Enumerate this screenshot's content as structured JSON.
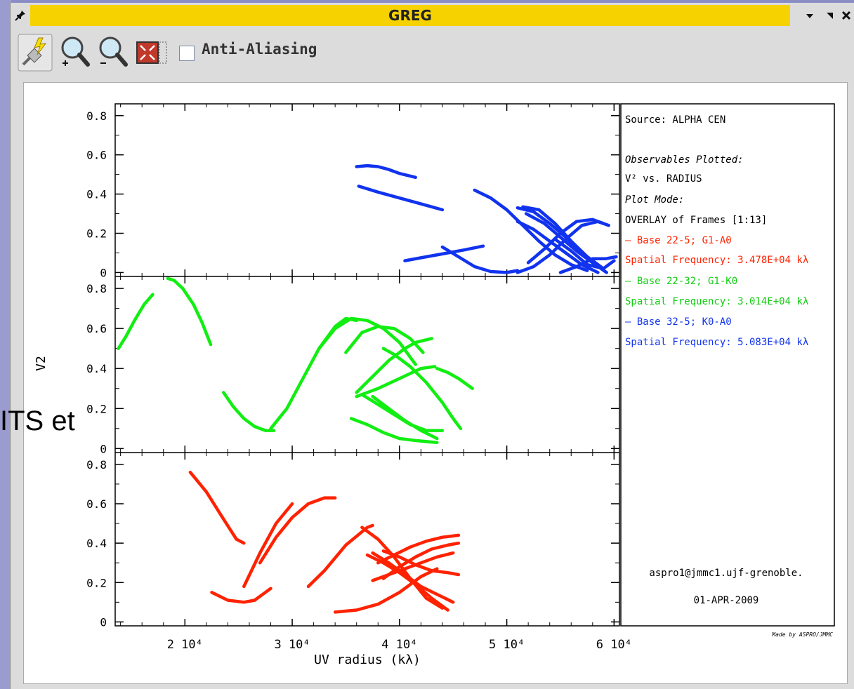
{
  "background": {
    "partial_text": "ITS et"
  },
  "window": {
    "title": "GREG"
  },
  "toolbar": {
    "tools": [
      {
        "icon": "lightning-plug-icon"
      },
      {
        "icon": "zoom-in-icon"
      },
      {
        "icon": "zoom-out-icon"
      },
      {
        "icon": "fit-to-window-icon"
      }
    ],
    "antialias_label": "Anti-Aliasing",
    "antialias_checked": false
  },
  "colors": {
    "red": "#ff2200",
    "green": "#11ee11",
    "blue": "#1133ee"
  },
  "chart_data": {
    "type": "line",
    "xlabel": "UV radius (kλ)",
    "ylabel": "V2",
    "xlim": [
      13500,
      60500
    ],
    "x_ticks": [
      {
        "value": 20000,
        "label": "2 10⁴"
      },
      {
        "value": 30000,
        "label": "3 10⁴"
      },
      {
        "value": 40000,
        "label": "4 10⁴"
      },
      {
        "value": 50000,
        "label": "5 10⁴"
      },
      {
        "value": 60000,
        "label": "6 10⁴"
      }
    ],
    "y_ticks": [
      "0",
      "0.2",
      "0.4",
      "0.6",
      "0.8"
    ],
    "panels": [
      {
        "name": "blue-panel",
        "color": "blue",
        "ylim": [
          -0.02,
          0.86
        ],
        "series": [
          [
            [
              36000,
              0.54
            ],
            [
              37000,
              0.545
            ],
            [
              38000,
              0.54
            ],
            [
              39000,
              0.525
            ],
            [
              40000,
              0.505
            ],
            [
              41500,
              0.485
            ]
          ],
          [
            [
              36200,
              0.44
            ],
            [
              38000,
              0.41
            ],
            [
              40000,
              0.38
            ],
            [
              42000,
              0.35
            ],
            [
              44000,
              0.32
            ]
          ],
          [
            [
              40500,
              0.06
            ],
            [
              42000,
              0.075
            ],
            [
              44000,
              0.095
            ],
            [
              46000,
              0.115
            ],
            [
              47800,
              0.135
            ]
          ],
          [
            [
              44000,
              0.13
            ],
            [
              45500,
              0.08
            ],
            [
              47000,
              0.03
            ],
            [
              48500,
              0.005
            ],
            [
              50000,
              0.0
            ],
            [
              51000,
              0.01
            ]
          ],
          [
            [
              47000,
              0.42
            ],
            [
              48500,
              0.38
            ],
            [
              50000,
              0.32
            ],
            [
              51500,
              0.24
            ],
            [
              53000,
              0.16
            ],
            [
              54500,
              0.09
            ],
            [
              56000,
              0.04
            ],
            [
              57500,
              0.01
            ]
          ],
          [
            [
              51000,
              0.33
            ],
            [
              52500,
              0.31
            ],
            [
              54000,
              0.25
            ],
            [
              55500,
              0.18
            ],
            [
              57000,
              0.1
            ],
            [
              58500,
              0.04
            ]
          ],
          [
            [
              51500,
              0.335
            ],
            [
              53000,
              0.32
            ],
            [
              54500,
              0.25
            ],
            [
              56000,
              0.16
            ],
            [
              57500,
              0.08
            ],
            [
              59000,
              0.02
            ]
          ],
          [
            [
              51800,
              0.3
            ],
            [
              53500,
              0.25
            ],
            [
              55000,
              0.18
            ],
            [
              56500,
              0.11
            ],
            [
              58000,
              0.05
            ],
            [
              59300,
              0.0
            ]
          ],
          [
            [
              51000,
              0.26
            ],
            [
              52500,
              0.22
            ],
            [
              54000,
              0.16
            ],
            [
              55500,
              0.1
            ],
            [
              57000,
              0.04
            ],
            [
              58500,
              0.0
            ]
          ],
          [
            [
              51000,
              0.0
            ],
            [
              52500,
              0.03
            ],
            [
              54000,
              0.09
            ],
            [
              55500,
              0.17
            ],
            [
              57000,
              0.24
            ],
            [
              58500,
              0.26
            ],
            [
              59500,
              0.24
            ]
          ],
          [
            [
              52000,
              0.05
            ],
            [
              53500,
              0.12
            ],
            [
              55000,
              0.2
            ],
            [
              56500,
              0.26
            ],
            [
              58000,
              0.27
            ],
            [
              59000,
              0.25
            ]
          ],
          [
            [
              55000,
              0.0
            ],
            [
              56500,
              0.03
            ],
            [
              58000,
              0.07
            ],
            [
              59200,
              0.07
            ],
            [
              60200,
              0.08
            ]
          ],
          [
            [
              54500,
              0.17
            ],
            [
              56000,
              0.11
            ],
            [
              57500,
              0.04
            ],
            [
              59000,
              0.02
            ],
            [
              60000,
              0.06
            ]
          ]
        ]
      },
      {
        "name": "green-panel",
        "color": "green",
        "ylim": [
          -0.02,
          0.86
        ],
        "series": [
          [
            [
              13800,
              0.5
            ],
            [
              14500,
              0.56
            ],
            [
              15300,
              0.64
            ],
            [
              16200,
              0.72
            ],
            [
              17000,
              0.77
            ]
          ],
          [
            [
              18400,
              0.85
            ],
            [
              19000,
              0.84
            ],
            [
              19800,
              0.8
            ],
            [
              20800,
              0.72
            ],
            [
              21600,
              0.63
            ],
            [
              22400,
              0.52
            ]
          ],
          [
            [
              23600,
              0.28
            ],
            [
              24500,
              0.21
            ],
            [
              25500,
              0.15
            ],
            [
              26500,
              0.11
            ],
            [
              27500,
              0.09
            ],
            [
              28300,
              0.09
            ]
          ],
          [
            [
              28000,
              0.1
            ],
            [
              29500,
              0.2
            ],
            [
              31000,
              0.35
            ],
            [
              32500,
              0.5
            ],
            [
              34000,
              0.61
            ],
            [
              35000,
              0.65
            ],
            [
              36000,
              0.64
            ]
          ],
          [
            [
              32500,
              0.5
            ],
            [
              34000,
              0.6
            ],
            [
              35500,
              0.65
            ],
            [
              37000,
              0.64
            ],
            [
              38500,
              0.6
            ],
            [
              40000,
              0.53
            ],
            [
              41500,
              0.42
            ]
          ],
          [
            [
              35000,
              0.48
            ],
            [
              36500,
              0.58
            ],
            [
              38000,
              0.61
            ],
            [
              39500,
              0.6
            ],
            [
              41000,
              0.55
            ],
            [
              42200,
              0.48
            ]
          ],
          [
            [
              36000,
              0.26
            ],
            [
              38000,
              0.3
            ],
            [
              40000,
              0.35
            ],
            [
              42000,
              0.4
            ],
            [
              43300,
              0.41
            ]
          ],
          [
            [
              36000,
              0.28
            ],
            [
              37500,
              0.36
            ],
            [
              39000,
              0.44
            ],
            [
              40500,
              0.5
            ],
            [
              41500,
              0.53
            ],
            [
              43000,
              0.55
            ]
          ],
          [
            [
              36500,
              0.27
            ],
            [
              38000,
              0.22
            ],
            [
              39500,
              0.17
            ],
            [
              41000,
              0.12
            ],
            [
              42500,
              0.09
            ],
            [
              44000,
              0.09
            ]
          ],
          [
            [
              35500,
              0.15
            ],
            [
              37000,
              0.12
            ],
            [
              38500,
              0.08
            ],
            [
              40000,
              0.05
            ],
            [
              41500,
              0.04
            ],
            [
              43500,
              0.03
            ]
          ],
          [
            [
              37500,
              0.26
            ],
            [
              39000,
              0.2
            ],
            [
              40500,
              0.14
            ],
            [
              42000,
              0.09
            ],
            [
              43500,
              0.05
            ]
          ],
          [
            [
              38500,
              0.5
            ],
            [
              39500,
              0.47
            ],
            [
              41000,
              0.41
            ],
            [
              42500,
              0.33
            ],
            [
              44000,
              0.23
            ],
            [
              45000,
              0.15
            ],
            [
              45700,
              0.1
            ]
          ],
          [
            [
              43500,
              0.4
            ],
            [
              44500,
              0.38
            ],
            [
              45500,
              0.35
            ],
            [
              46800,
              0.3
            ]
          ]
        ]
      },
      {
        "name": "red-panel",
        "color": "red",
        "ylim": [
          -0.02,
          0.86
        ],
        "series": [
          [
            [
              20500,
              0.76
            ],
            [
              22000,
              0.66
            ],
            [
              23500,
              0.53
            ],
            [
              24800,
              0.42
            ],
            [
              25500,
              0.4
            ]
          ],
          [
            [
              22500,
              0.15
            ],
            [
              24000,
              0.11
            ],
            [
              25500,
              0.1
            ],
            [
              26500,
              0.11
            ],
            [
              28000,
              0.17
            ]
          ],
          [
            [
              25500,
              0.18
            ],
            [
              27000,
              0.35
            ],
            [
              28500,
              0.5
            ],
            [
              30000,
              0.6
            ]
          ],
          [
            [
              27000,
              0.3
            ],
            [
              28500,
              0.43
            ],
            [
              30000,
              0.53
            ],
            [
              31500,
              0.6
            ],
            [
              33000,
              0.63
            ],
            [
              34000,
              0.63
            ]
          ],
          [
            [
              31500,
              0.18
            ],
            [
              33000,
              0.26
            ],
            [
              35000,
              0.39
            ],
            [
              37000,
              0.48
            ],
            [
              37500,
              0.49
            ]
          ],
          [
            [
              36500,
              0.48
            ],
            [
              38000,
              0.42
            ],
            [
              39500,
              0.33
            ],
            [
              41000,
              0.22
            ],
            [
              42500,
              0.12
            ],
            [
              44000,
              0.07
            ]
          ],
          [
            [
              37500,
              0.35
            ],
            [
              39000,
              0.3
            ],
            [
              40500,
              0.24
            ],
            [
              42000,
              0.18
            ],
            [
              43500,
              0.14
            ],
            [
              45000,
              0.1
            ]
          ],
          [
            [
              38000,
              0.3
            ],
            [
              39500,
              0.34
            ],
            [
              41000,
              0.38
            ],
            [
              42500,
              0.41
            ],
            [
              44000,
              0.43
            ],
            [
              45500,
              0.44
            ]
          ],
          [
            [
              38500,
              0.22
            ],
            [
              40000,
              0.28
            ],
            [
              41500,
              0.33
            ],
            [
              43000,
              0.37
            ],
            [
              44500,
              0.39
            ],
            [
              45500,
              0.4
            ]
          ],
          [
            [
              38500,
              0.36
            ],
            [
              40000,
              0.33
            ],
            [
              41500,
              0.29
            ],
            [
              43000,
              0.26
            ],
            [
              44500,
              0.25
            ],
            [
              45500,
              0.24
            ]
          ],
          [
            [
              37500,
              0.21
            ],
            [
              39000,
              0.24
            ],
            [
              40500,
              0.27
            ],
            [
              42000,
              0.3
            ],
            [
              43500,
              0.33
            ],
            [
              45000,
              0.35
            ]
          ],
          [
            [
              37000,
              0.34
            ],
            [
              38500,
              0.3
            ],
            [
              40000,
              0.25
            ],
            [
              41500,
              0.19
            ],
            [
              43000,
              0.12
            ],
            [
              44500,
              0.06
            ]
          ],
          [
            [
              34000,
              0.05
            ],
            [
              36000,
              0.06
            ],
            [
              38000,
              0.09
            ],
            [
              40000,
              0.15
            ],
            [
              42000,
              0.23
            ],
            [
              43500,
              0.27
            ]
          ]
        ]
      }
    ],
    "legend": {
      "placement": "right",
      "lines": [
        {
          "text": "Source: ALPHA CEN",
          "color": "#000"
        },
        {
          "text": "Observables Plotted:",
          "color": "#000",
          "italic": true
        },
        {
          "text": "V² vs. RADIUS",
          "color": "#000"
        },
        {
          "text": "Plot Mode:",
          "color": "#000",
          "italic": true
        },
        {
          "text": "OVERLAY of Frames [1:13]",
          "color": "#000"
        },
        {
          "text": "— Base 22-5; G1-A0",
          "color": "#ff2200"
        },
        {
          "text": "Spatial Frequency: 3.478E+04 kλ",
          "color": "#ff2200"
        },
        {
          "text": "— Base 22-32; G1-K0",
          "color": "#11cc11"
        },
        {
          "text": "Spatial Frequency: 3.014E+04 kλ",
          "color": "#11cc11"
        },
        {
          "text": "— Base 32-5; K0-A0",
          "color": "#1133ee"
        },
        {
          "text": "Spatial Frequency: 5.083E+04 kλ",
          "color": "#1133ee"
        }
      ],
      "footer": [
        "aspro1@jmmc1.ujf-grenoble.",
        "01-APR-2009"
      ],
      "credit": "Made by ASPRO/JMMC"
    }
  }
}
